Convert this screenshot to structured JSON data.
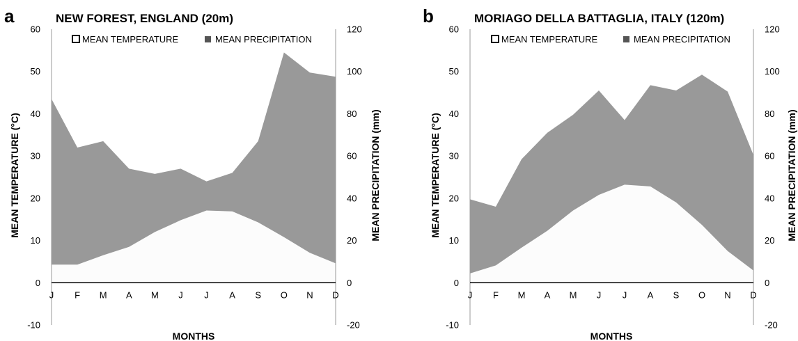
{
  "chart_data": [
    {
      "type": "area",
      "panel_letter": "a",
      "title": "NEW FOREST, ENGLAND (20m)",
      "xlabel": "MONTHS",
      "ylabel": "MEAN TEMPERATURE (°C)",
      "y2label": "MEAN PRECIPITATION (mm)",
      "categories": [
        "J",
        "F",
        "M",
        "A",
        "M",
        "J",
        "J",
        "A",
        "S",
        "O",
        "N",
        "D"
      ],
      "ylim": [
        -10,
        60
      ],
      "y2lim": [
        -20,
        120
      ],
      "yticks": [
        "60",
        "50",
        "40",
        "30",
        "20",
        "10",
        "0",
        "-10"
      ],
      "y2ticks": [
        "120",
        "100",
        "80",
        "60",
        "40",
        "20",
        "0",
        "-20"
      ],
      "legend_placement": "top-center",
      "series": [
        {
          "name": "MEAN PRECIPITATION",
          "axis": "right",
          "color": "#999999",
          "values": [
            87,
            64,
            67,
            54,
            51.5,
            54,
            48,
            52,
            67,
            109,
            99.5,
            97.5
          ]
        },
        {
          "name": "MEAN TEMPERATURE",
          "axis": "left",
          "color": "#fcfcfc",
          "values": [
            4.3,
            4.3,
            6.5,
            8.5,
            12,
            14.8,
            17.1,
            16.9,
            14.3,
            10.8,
            7.1,
            4.6
          ]
        }
      ]
    },
    {
      "type": "area",
      "panel_letter": "b",
      "title": "MORIAGO DELLA BATTAGLIA, ITALY (120m)",
      "xlabel": "MONTHS",
      "ylabel": "MEAN TEMPERATURE (°C)",
      "y2label": "MEAN PRECIPITATION (mm)",
      "categories": [
        "J",
        "F",
        "M",
        "A",
        "M",
        "J",
        "J",
        "A",
        "S",
        "O",
        "N",
        "D"
      ],
      "ylim": [
        -10,
        60
      ],
      "y2lim": [
        -20,
        120
      ],
      "yticks": [
        "60",
        "50",
        "40",
        "30",
        "20",
        "10",
        "0",
        "-10"
      ],
      "y2ticks": [
        "120",
        "100",
        "80",
        "60",
        "40",
        "20",
        "0",
        "-20"
      ],
      "legend_placement": "top-center",
      "series": [
        {
          "name": "MEAN PRECIPITATION",
          "axis": "right",
          "color": "#999999",
          "values": [
            39.5,
            36,
            58.5,
            71,
            79.5,
            91,
            77,
            93.5,
            91,
            98.5,
            90.5,
            60.5
          ]
        },
        {
          "name": "MEAN TEMPERATURE",
          "axis": "left",
          "color": "#fcfcfc",
          "values": [
            2.2,
            4.1,
            8.3,
            12.3,
            17.1,
            20.8,
            23.2,
            22.8,
            19,
            13.7,
            7.5,
            2.9
          ]
        }
      ]
    }
  ]
}
